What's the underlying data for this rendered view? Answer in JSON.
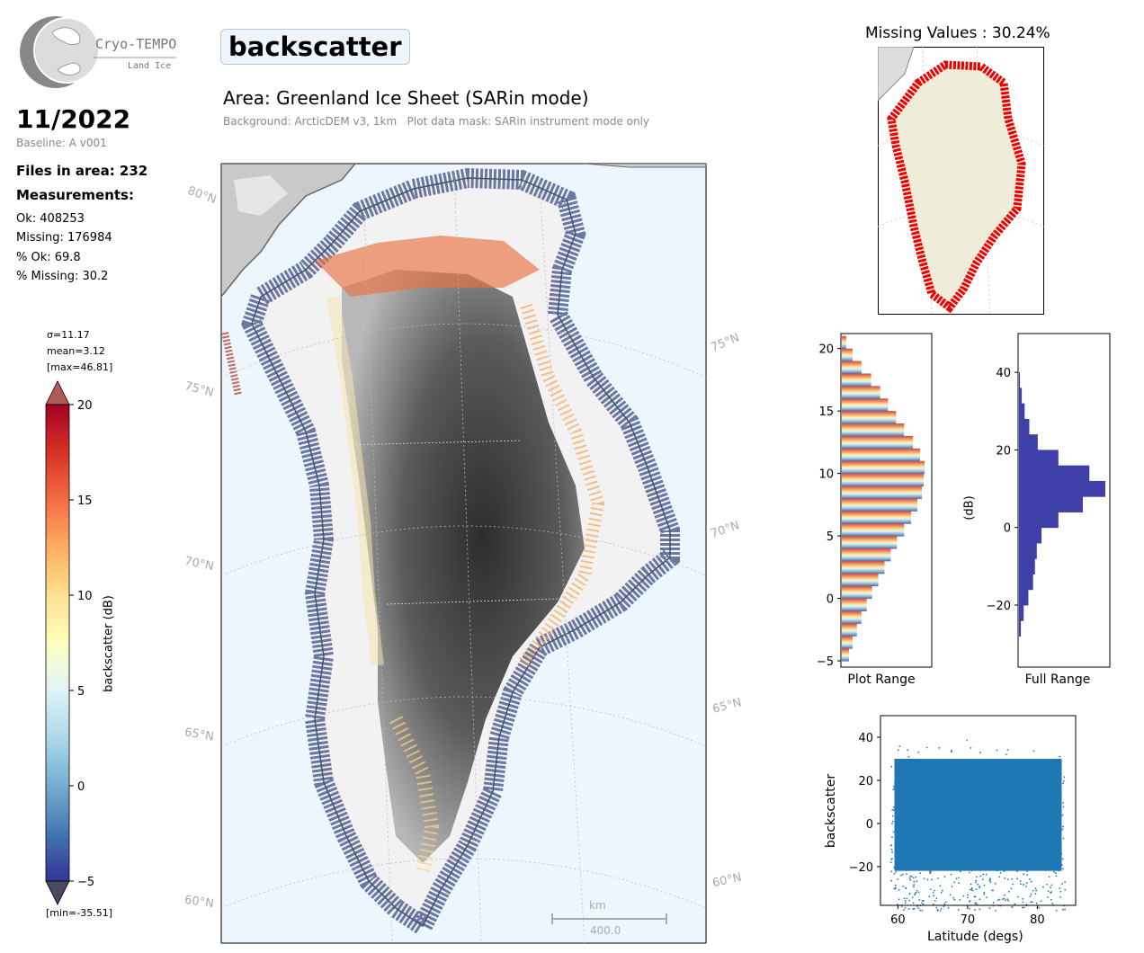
{
  "logo": {
    "name": "Cryo-TEMPO",
    "subtitle": "Land Ice"
  },
  "header": {
    "title": "backscatter",
    "date": "11/2022",
    "baseline": "Baseline: A v001",
    "area": "Area: Greenland Ice Sheet (SARin mode)",
    "background_note": "Background: ArcticDEM v3, 1km   Plot data mask: SARin instrument mode only"
  },
  "stats": {
    "files": "Files in area: 232",
    "measurements_heading": "Measurements:",
    "ok": "Ok: 408253",
    "missing": "Missing: 176984",
    "pct_ok": "% Ok: 69.8",
    "pct_missing": "% Missing: 30.2"
  },
  "colorbar": {
    "sigma": "σ=11.17",
    "mean": "mean=3.12",
    "max": "[max=46.81]",
    "min": "[min=-35.51]",
    "label": "backscatter (dB)",
    "ticks": [
      "20",
      "15",
      "10",
      "5",
      "0",
      "−5"
    ],
    "colors": [
      "#a50026",
      "#d73027",
      "#f46d43",
      "#fdae61",
      "#fee090",
      "#ffffbf",
      "#e0f3f8",
      "#abd9e9",
      "#74add1",
      "#4575b4",
      "#313695"
    ]
  },
  "map": {
    "lat_labels": [
      "80°N",
      "75°N",
      "70°N",
      "65°N",
      "60°N"
    ],
    "lat_labels_right": [
      "75°N",
      "70°N",
      "65°N",
      "60°N"
    ],
    "scale_unit": "km",
    "scale_value": "400.0"
  },
  "missing_map": {
    "title": "Missing Values : 30.24%"
  },
  "chart_data": [
    {
      "type": "bar",
      "orientation": "horizontal",
      "name": "Plot Range histogram",
      "xlabel": "Plot Range",
      "ylabel": "",
      "ylim": [
        -5.5,
        21.2
      ],
      "yticks": [
        "20",
        "15",
        "10",
        "5",
        "0",
        "−5"
      ],
      "bins_y": [
        20,
        19,
        18,
        17,
        16,
        15,
        14,
        13,
        12,
        11,
        10,
        9,
        8,
        7,
        6,
        5,
        4,
        3,
        2,
        1,
        0,
        -1,
        -2,
        -3,
        -4,
        -5
      ],
      "counts": [
        5,
        12,
        22,
        33,
        43,
        52,
        61,
        70,
        80,
        88,
        93,
        92,
        90,
        85,
        78,
        70,
        62,
        55,
        48,
        41,
        34,
        28,
        22,
        17,
        12,
        8
      ]
    },
    {
      "type": "bar",
      "orientation": "horizontal",
      "name": "Full Range histogram",
      "xlabel": "Full Range",
      "ylabel": "(dB)",
      "ylim": [
        -36,
        50
      ],
      "yticks": [
        "40",
        "20",
        "0",
        "−20"
      ],
      "bins_y": [
        36,
        32,
        28,
        24,
        20,
        16,
        12,
        8,
        4,
        0,
        -4,
        -8,
        -12,
        -16,
        -20,
        -24,
        -28
      ],
      "counts": [
        1,
        3,
        6,
        11,
        20,
        42,
        75,
        92,
        68,
        42,
        24,
        19,
        17,
        15,
        10,
        5,
        2
      ]
    },
    {
      "type": "scatter",
      "name": "backscatter vs latitude",
      "xlabel": "Latitude (degs)",
      "ylabel": "backscatter",
      "xlim": [
        57.5,
        85.5
      ],
      "ylim": [
        -38,
        50
      ],
      "xticks": [
        "60",
        "70",
        "80"
      ],
      "yticks": [
        "40",
        "20",
        "0",
        "−20"
      ],
      "x_range": [
        59,
        84
      ],
      "y_range": [
        -35.51,
        46.81
      ],
      "color": "#1f77b4"
    }
  ]
}
